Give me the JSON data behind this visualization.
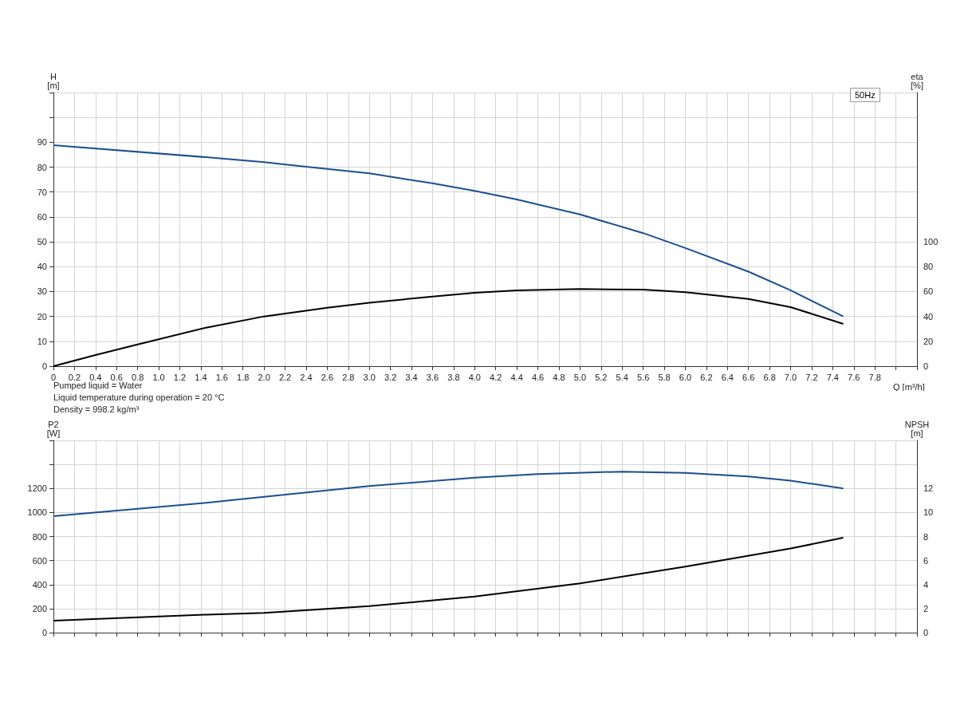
{
  "chart_data": [
    {
      "type": "line",
      "ylabel": "H [m]",
      "y2label": "eta [%]",
      "xlabel": "Q [m³/h]",
      "annotations": [
        "50Hz"
      ],
      "grid": true,
      "marker": "none",
      "line_style": "solid",
      "xlim": [
        0,
        8.2
      ],
      "xticks": [
        0,
        0.2,
        0.4,
        0.6,
        0.8,
        {
          "value": 1,
          "label": "1.0"
        },
        1.2,
        1.4,
        1.6,
        1.8,
        {
          "value": 2,
          "label": "2.0"
        },
        2.2,
        2.4,
        2.6,
        2.8,
        {
          "value": 3,
          "label": "3.0"
        },
        3.2,
        3.4,
        3.6,
        3.8,
        {
          "value": 4,
          "label": "4.0"
        },
        4.2,
        4.4,
        4.6,
        4.8,
        {
          "value": 5,
          "label": "5.0"
        },
        5.2,
        5.4,
        5.6,
        5.8,
        {
          "value": 6,
          "label": "6.0"
        },
        6.2,
        6.4,
        6.6,
        6.8,
        {
          "value": 7,
          "label": "7.0"
        },
        7.2,
        7.4,
        7.6,
        7.8
      ],
      "ylim": [
        0,
        110
      ],
      "yticks": [
        0,
        10,
        20,
        30,
        40,
        50,
        60,
        70,
        80,
        90
      ],
      "y2lim": [
        0,
        220
      ],
      "y2ticks": [
        0,
        20,
        40,
        60,
        80,
        100
      ],
      "series": [
        {
          "color": "#1a4f8f",
          "x": [
            0,
            1.45,
            2,
            2.4,
            3,
            3.6,
            4,
            4.4,
            5,
            5.6,
            6,
            6.6,
            7,
            7.5
          ],
          "values": [
            88.8,
            84,
            82,
            80.2,
            77.5,
            73.5,
            70.5,
            67,
            61,
            53.5,
            47.5,
            38,
            30.5,
            20
          ]
        },
        {
          "color": "#000000",
          "axis": "y2",
          "x": [
            0,
            0.4,
            0.8,
            1.45,
            2,
            2.6,
            3,
            3.6,
            4,
            4.4,
            5,
            5.6,
            6,
            6.6,
            7,
            7.5
          ],
          "values": [
            0,
            9,
            17.5,
            31,
            40,
            47,
            51,
            56,
            59,
            61,
            62,
            61.5,
            59.5,
            54,
            47.5,
            34
          ]
        }
      ]
    },
    {
      "type": "line",
      "ylabel": "P2 [W]",
      "y2label": "NPSH [m]",
      "annotations": [
        "Pumped liquid = Water",
        "Liquid temperature during operation = 20 °C",
        "Density = 998.2 kg/m³"
      ],
      "grid": true,
      "marker": "none",
      "line_style": "solid",
      "tick_labels": "y",
      "xlim": [
        0,
        8.2
      ],
      "ylim": [
        0,
        1600
      ],
      "yticks": [
        0,
        200,
        400,
        600,
        800,
        1000,
        1200
      ],
      "y2lim": [
        0,
        16
      ],
      "y2ticks": [
        0,
        2,
        4,
        6,
        8,
        10,
        12
      ],
      "series": [
        {
          "color": "#1a4f8f",
          "x": [
            0,
            0.8,
            1.45,
            2,
            3,
            4,
            4.6,
            5.4,
            6,
            6.6,
            7,
            7.5
          ],
          "values": [
            970,
            1030,
            1080,
            1130,
            1220,
            1290,
            1320,
            1340,
            1330,
            1300,
            1265,
            1200
          ]
        },
        {
          "color": "#000000",
          "axis": "y2",
          "x": [
            0,
            1.45,
            2,
            3,
            4,
            5,
            6,
            7,
            7.5
          ],
          "values": [
            1,
            1.5,
            1.65,
            2.2,
            3,
            4.1,
            5.5,
            7,
            7.9
          ]
        }
      ]
    }
  ]
}
